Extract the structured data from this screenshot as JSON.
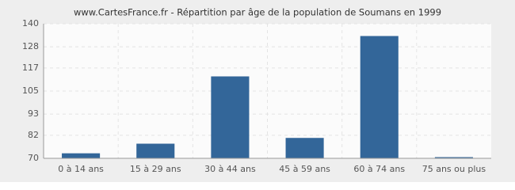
{
  "chart_data": {
    "type": "bar",
    "title": "www.CartesFrance.fr - Répartition par âge de la population de Soumans en 1999",
    "categories": [
      "0 à 14 ans",
      "15 à 29 ans",
      "30 à 44 ans",
      "45 à 59 ans",
      "60 à 74 ans",
      "75 ans ou plus"
    ],
    "values": [
      72,
      77,
      112,
      80,
      133,
      70
    ],
    "color": "#336699",
    "ylim": [
      70,
      140
    ],
    "yticks": [
      70,
      82,
      93,
      105,
      117,
      128,
      140
    ],
    "grid": true
  }
}
